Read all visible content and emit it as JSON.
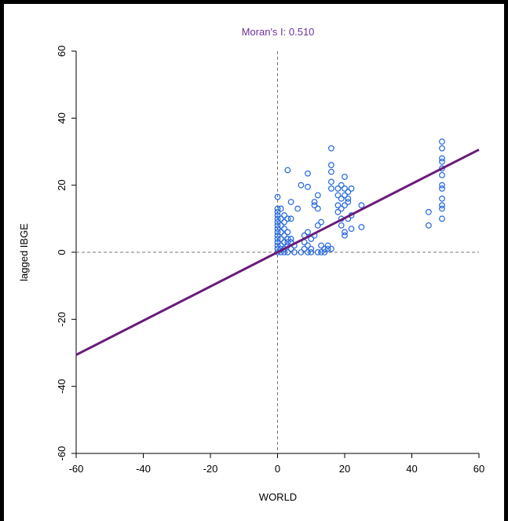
{
  "chart_data": {
    "type": "scatter",
    "title": "Moran's I: 0.510",
    "title_color": "#7030a0",
    "x_label": "WORLD",
    "y_label": "lagged IBGE",
    "xlim": [
      -60,
      60
    ],
    "ylim": [
      -60,
      60
    ],
    "xticks": [
      -60,
      -40,
      -20,
      0,
      20,
      40,
      60
    ],
    "yticks": [
      -60,
      -40,
      -20,
      0,
      20,
      40,
      60
    ],
    "reference_x": 0,
    "reference_y": 0,
    "series": [
      {
        "color": "#2266dd",
        "x": [
          0,
          0,
          0,
          0,
          0,
          0,
          0,
          0,
          0,
          0,
          0,
          0,
          0,
          0,
          0,
          1,
          1,
          1,
          1,
          1,
          1,
          1,
          1,
          2,
          2,
          2,
          2,
          2,
          2,
          2,
          3,
          3,
          3,
          3,
          3,
          3,
          3,
          4,
          4,
          4,
          4,
          4,
          5,
          5,
          6,
          7,
          7,
          8,
          8,
          8,
          9,
          9,
          9,
          9,
          9,
          10,
          10,
          10,
          11,
          11,
          11,
          12,
          12,
          12,
          12,
          13,
          13,
          13,
          14,
          14,
          15,
          15,
          16,
          16,
          16,
          16,
          16,
          16,
          18,
          18,
          18,
          18,
          19,
          19,
          19,
          19,
          19,
          20,
          20,
          20,
          20,
          20,
          20,
          21,
          21,
          21,
          21,
          22,
          22,
          22,
          25,
          25,
          45,
          45,
          49,
          49,
          49,
          49,
          49,
          49,
          49,
          49,
          49,
          49,
          49,
          49
        ],
        "y": [
          0,
          1,
          2,
          3,
          4,
          5,
          6,
          7,
          8,
          9,
          10,
          11,
          12,
          13,
          16.5,
          0,
          1,
          2,
          4,
          6,
          8,
          10,
          13,
          0,
          1,
          3,
          5,
          7,
          9,
          11,
          0,
          2,
          3,
          4,
          6,
          10,
          24.5,
          1,
          3,
          4,
          10,
          15,
          0,
          2,
          13,
          0,
          20,
          1,
          3,
          5,
          0,
          2,
          6,
          19.5,
          23.5,
          0,
          1,
          4,
          5,
          14,
          15,
          0,
          8,
          13,
          17,
          0,
          2,
          9,
          0,
          1,
          1,
          2,
          1,
          19,
          21,
          24,
          26,
          31,
          12,
          14,
          17,
          19,
          8,
          10,
          13,
          16,
          20,
          5,
          6,
          14,
          17,
          19,
          22.5,
          10,
          15,
          16,
          18,
          7,
          11,
          19,
          7.5,
          14,
          8,
          12,
          10,
          13,
          14,
          16,
          19,
          20,
          23,
          25,
          27,
          28,
          31,
          33
        ]
      }
    ],
    "fit_line": {
      "color": "#6a1b7a",
      "x": [
        -60,
        60
      ],
      "y": [
        -30.6,
        30.6
      ]
    }
  }
}
